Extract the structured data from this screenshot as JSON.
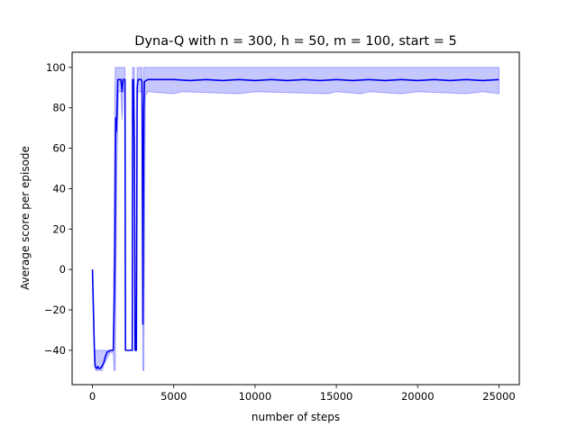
{
  "chart_data": {
    "type": "line",
    "title": "Dyna-Q with n = 300, h = 50, m = 100, start = 5",
    "xlabel": "number of steps",
    "ylabel": "Average score per episode",
    "xlim": [
      -1250,
      26250
    ],
    "ylim": [
      -57,
      107.5
    ],
    "xticks": [
      0,
      5000,
      10000,
      15000,
      20000,
      25000
    ],
    "xtick_labels": [
      "0",
      "5000",
      "10000",
      "15000",
      "20000",
      "25000"
    ],
    "yticks": [
      -40,
      -20,
      0,
      20,
      40,
      60,
      80,
      100
    ],
    "ytick_labels": [
      "−40",
      "−20",
      "0",
      "20",
      "40",
      "60",
      "80",
      "100"
    ],
    "grid": false,
    "line_color": "#0000ee",
    "band_color": "#0000ff",
    "series": [
      {
        "values": [
          [
            0,
            0
          ],
          [
            60,
            -20
          ],
          [
            120,
            -40
          ],
          [
            160,
            -48
          ],
          [
            250,
            -49
          ],
          [
            330,
            -48
          ],
          [
            400,
            -49
          ],
          [
            480,
            -49
          ],
          [
            580,
            -48
          ],
          [
            700,
            -46
          ],
          [
            800,
            -43
          ],
          [
            900,
            -41
          ],
          [
            1000,
            -40.5
          ],
          [
            1100,
            -40
          ],
          [
            1200,
            -40
          ],
          [
            1280,
            -40
          ],
          [
            1330,
            -20
          ],
          [
            1380,
            5
          ],
          [
            1430,
            75
          ],
          [
            1460,
            68
          ],
          [
            1500,
            76
          ],
          [
            1560,
            94
          ],
          [
            1650,
            94
          ],
          [
            1750,
            94
          ],
          [
            1820,
            88
          ],
          [
            1880,
            94
          ],
          [
            1950,
            94
          ],
          [
            2000,
            94
          ],
          [
            2030,
            -40
          ],
          [
            2100,
            -40
          ],
          [
            2200,
            -40
          ],
          [
            2300,
            -40
          ],
          [
            2400,
            -40
          ],
          [
            2450,
            -40
          ],
          [
            2470,
            94
          ],
          [
            2520,
            94
          ],
          [
            2580,
            60
          ],
          [
            2620,
            -40
          ],
          [
            2700,
            -40
          ],
          [
            2750,
            90
          ],
          [
            2800,
            94
          ],
          [
            2900,
            94
          ],
          [
            3000,
            94
          ],
          [
            3050,
            93
          ],
          [
            3100,
            -27
          ],
          [
            3130,
            30
          ],
          [
            3160,
            80
          ],
          [
            3200,
            93
          ],
          [
            3400,
            94
          ],
          [
            4000,
            94
          ],
          [
            5000,
            94
          ],
          [
            6000,
            93.5
          ],
          [
            7000,
            94
          ],
          [
            8000,
            93.5
          ],
          [
            9000,
            94
          ],
          [
            10000,
            93.5
          ],
          [
            11000,
            94
          ],
          [
            12000,
            93.5
          ],
          [
            13000,
            94
          ],
          [
            14000,
            93.5
          ],
          [
            15000,
            94
          ],
          [
            16000,
            93.5
          ],
          [
            17000,
            94
          ],
          [
            18000,
            93.5
          ],
          [
            19000,
            94
          ],
          [
            20000,
            93.5
          ],
          [
            21000,
            94
          ],
          [
            22000,
            93.5
          ],
          [
            23000,
            94
          ],
          [
            24000,
            93.5
          ],
          [
            25000,
            94
          ]
        ],
        "band": [
          [
            0,
            0,
            0
          ],
          [
            120,
            -40,
            -40
          ],
          [
            200,
            -50,
            -40
          ],
          [
            400,
            -50,
            -40
          ],
          [
            600,
            -50,
            -40
          ],
          [
            700,
            -47,
            -40
          ],
          [
            900,
            -44,
            -40
          ],
          [
            1100,
            -41,
            -40
          ],
          [
            1280,
            -41,
            -40
          ],
          [
            1330,
            -50,
            30
          ],
          [
            1400,
            -50,
            100
          ],
          [
            1500,
            50,
            100
          ],
          [
            1600,
            88,
            100
          ],
          [
            1750,
            88,
            100
          ],
          [
            1820,
            74,
            100
          ],
          [
            1880,
            88,
            100
          ],
          [
            1950,
            88,
            100
          ],
          [
            2000,
            88,
            100
          ],
          [
            2030,
            -40,
            -40
          ],
          [
            2450,
            -40,
            -40
          ],
          [
            2470,
            88,
            100
          ],
          [
            2520,
            88,
            100
          ],
          [
            2580,
            20,
            100
          ],
          [
            2620,
            -40,
            -40
          ],
          [
            2700,
            -40,
            -40
          ],
          [
            2750,
            80,
            100
          ],
          [
            2800,
            88,
            100
          ],
          [
            3000,
            88,
            100
          ],
          [
            3050,
            86,
            100
          ],
          [
            3100,
            -50,
            20
          ],
          [
            3160,
            -50,
            100
          ],
          [
            3250,
            86,
            100
          ],
          [
            3400,
            88,
            100
          ],
          [
            5000,
            87,
            100
          ],
          [
            5500,
            88,
            100
          ],
          [
            9000,
            87,
            100
          ],
          [
            10000,
            88,
            100
          ],
          [
            14500,
            87,
            100
          ],
          [
            15000,
            88,
            100
          ],
          [
            16500,
            87,
            100
          ],
          [
            17000,
            88,
            100
          ],
          [
            19000,
            87,
            100
          ],
          [
            20000,
            88,
            100
          ],
          [
            23000,
            87,
            100
          ],
          [
            24000,
            88,
            100
          ],
          [
            25000,
            87,
            100
          ]
        ]
      }
    ]
  }
}
